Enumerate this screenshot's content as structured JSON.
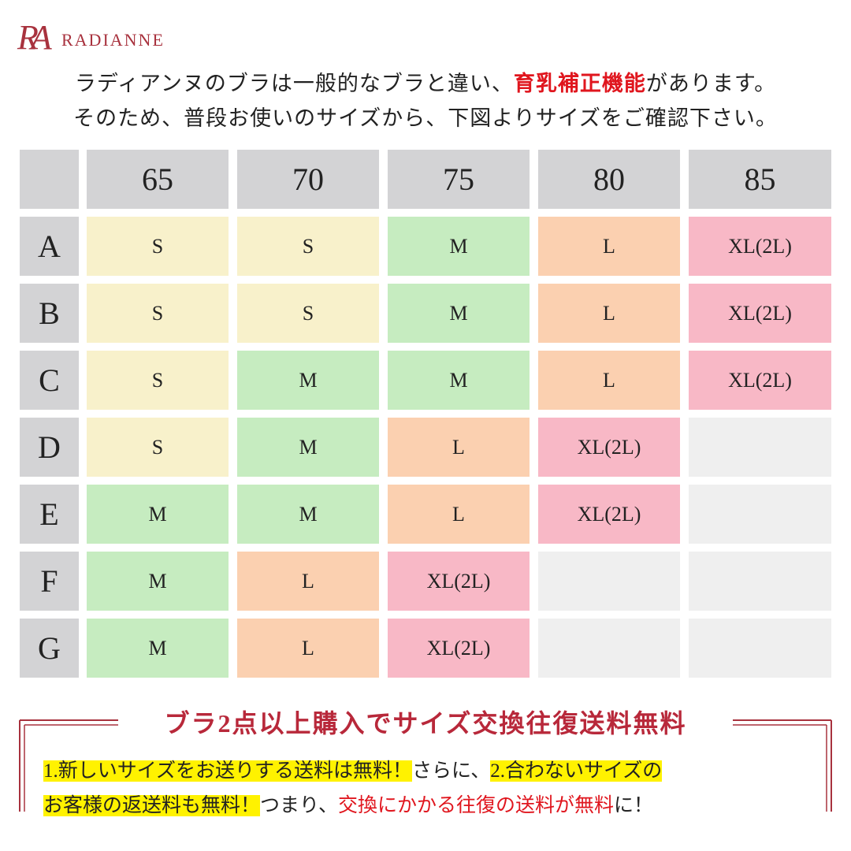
{
  "logo": {
    "monogram": "RA",
    "name": "RADIANNE"
  },
  "intro": {
    "line1": {
      "before": "ラディアンヌのブラは一般的なブラと違い、",
      "emphasis": "育乳補正機能",
      "after": "があります。"
    },
    "line2": "そのため、普段お使いのサイズから、下図よりサイズをご確認下さい。"
  },
  "table": {
    "columns": [
      "65",
      "70",
      "75",
      "80",
      "85"
    ],
    "rows": [
      {
        "label": "A",
        "cells": [
          "S",
          "S",
          "M",
          "L",
          "XL(2L)"
        ]
      },
      {
        "label": "B",
        "cells": [
          "S",
          "S",
          "M",
          "L",
          "XL(2L)"
        ]
      },
      {
        "label": "C",
        "cells": [
          "S",
          "M",
          "M",
          "L",
          "XL(2L)"
        ]
      },
      {
        "label": "D",
        "cells": [
          "S",
          "M",
          "L",
          "XL(2L)",
          null
        ]
      },
      {
        "label": "E",
        "cells": [
          "M",
          "M",
          "L",
          "XL(2L)",
          null
        ]
      },
      {
        "label": "F",
        "cells": [
          "M",
          "L",
          "XL(2L)",
          null,
          null
        ]
      },
      {
        "label": "G",
        "cells": [
          "M",
          "L",
          "XL(2L)",
          null,
          null
        ]
      }
    ]
  },
  "notice": {
    "title": "ブラ2点以上購入でサイズ交換往復送料無料",
    "line1": [
      "1.新しいサイズをお送りする送料は無料！",
      "さらに、",
      "2.合わないサイズの"
    ],
    "line2": [
      "お客様の返送料も無料！",
      "つまり、",
      "交換にかかる往復の送料が無料",
      "に！"
    ]
  }
}
